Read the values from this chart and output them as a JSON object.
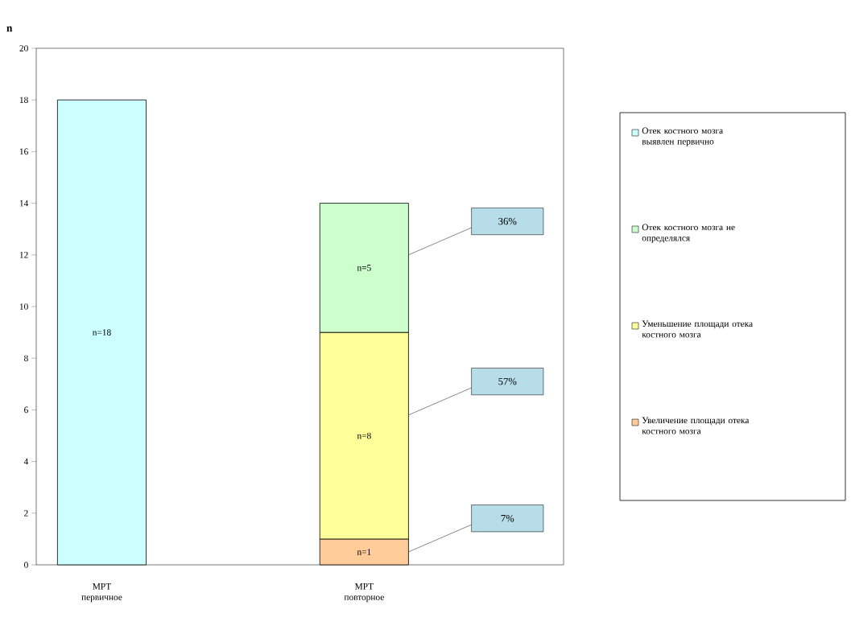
{
  "chart_data": {
    "type": "bar",
    "stacked": true,
    "ylabel": "n",
    "categories": [
      "МРТ первичное",
      "МРТ повторное"
    ],
    "ylim": [
      0,
      20
    ],
    "yticks": [
      0,
      2,
      4,
      6,
      8,
      10,
      12,
      14,
      16,
      18,
      20
    ],
    "series": [
      {
        "name": "Увеличение площади отека костного мозга",
        "color": "#ffcc99",
        "values": [
          null,
          1
        ],
        "value_labels": [
          null,
          "n=1"
        ]
      },
      {
        "name": "Уменьшение площади отека костного мозга",
        "color": "#ffff99",
        "values": [
          null,
          8
        ],
        "value_labels": [
          null,
          "n=8"
        ]
      },
      {
        "name": "Отек костного мозга не определялся",
        "color": "#ccffcc",
        "values": [
          null,
          5
        ],
        "value_labels": [
          null,
          "n=5"
        ]
      },
      {
        "name": "Отек костного мозга выявлен первично",
        "color": "#ccffff",
        "values": [
          18,
          null
        ],
        "value_labels": [
          "n=18",
          null
        ]
      }
    ],
    "annotations": [
      "36%",
      "57%",
      "7%"
    ],
    "legend": "right",
    "grid": false
  }
}
